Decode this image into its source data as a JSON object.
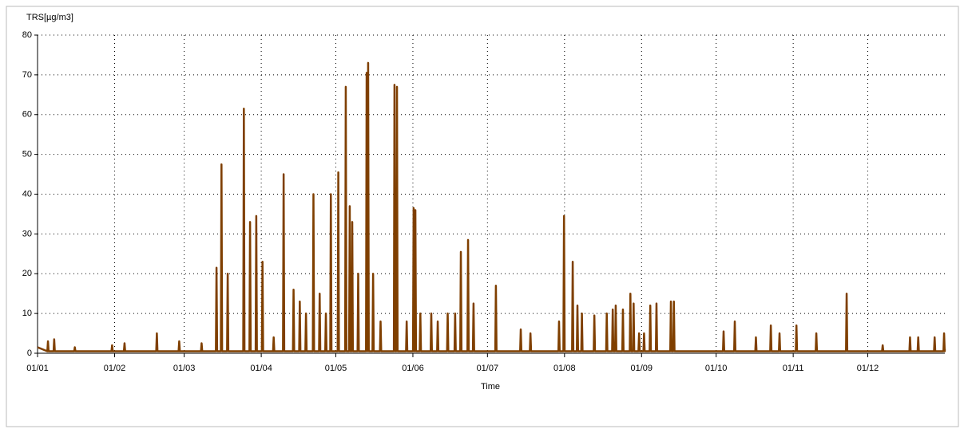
{
  "chart_data": {
    "type": "line",
    "y_label": "TRS[µg/m3]",
    "x_label": "Time",
    "color": "#7f3f00",
    "grid": true,
    "xlim": [
      0,
      365
    ],
    "ylim": [
      0,
      80
    ],
    "yticks": [
      0,
      10,
      20,
      30,
      40,
      50,
      60,
      70,
      80
    ],
    "xticks": [
      {
        "value": 0,
        "label": "01/01"
      },
      {
        "value": 31,
        "label": "01/02"
      },
      {
        "value": 59,
        "label": "01/03"
      },
      {
        "value": 90,
        "label": "01/04"
      },
      {
        "value": 120,
        "label": "01/05"
      },
      {
        "value": 151,
        "label": "01/06"
      },
      {
        "value": 181,
        "label": "01/07"
      },
      {
        "value": 212,
        "label": "01/08"
      },
      {
        "value": 243,
        "label": "01/09"
      },
      {
        "value": 273,
        "label": "01/10"
      },
      {
        "value": 304,
        "label": "01/11"
      },
      {
        "value": 334,
        "label": "01/12"
      }
    ],
    "x": [
      0,
      3.95,
      4.2,
      4.45,
      6.45,
      6.7,
      6.95,
      14.75,
      15,
      15.25,
      29.75,
      30,
      30.25,
      34.75,
      35,
      35.25,
      47.75,
      48,
      48.25,
      56.75,
      57,
      57.25,
      65.75,
      66,
      66.25,
      71.75,
      72,
      72.25,
      73.75,
      74,
      74.25,
      76.25,
      76.5,
      76.75,
      82.75,
      83,
      83.25,
      85.25,
      85.5,
      85.75,
      87.75,
      88,
      88.25,
      90.25,
      90.5,
      90.75,
      94.75,
      95,
      95.25,
      98.75,
      99,
      99.25,
      102.75,
      103,
      103.25,
      105.25,
      105.5,
      105.75,
      107.75,
      108,
      108.25,
      110.75,
      111,
      111.25,
      113.25,
      113.5,
      113.75,
      115.75,
      116,
      116.25,
      117.75,
      118,
      118.25,
      120.75,
      121,
      121.25,
      123.75,
      124,
      124.25,
      125.35,
      125.6,
      125.85,
      126.35,
      126.6,
      126.85,
      128.75,
      129,
      129.25,
      132.15,
      132.4,
      132.65,
      132.75,
      133,
      133.25,
      134.75,
      135,
      135.25,
      137.75,
      138,
      138.25,
      143.35,
      143.6,
      143.85,
      144.35,
      144.6,
      144.85,
      148.25,
      148.5,
      148.75,
      151.05,
      151.3,
      151.55,
      151.75,
      152,
      152.25,
      153.75,
      154,
      154.25,
      158.15,
      158.4,
      158.65,
      160.75,
      161,
      161.25,
      164.75,
      165,
      165.25,
      167.75,
      168,
      168.25,
      170.05,
      170.3,
      170.55,
      172.95,
      173.2,
      173.45,
      175.15,
      175.4,
      175.65,
      184.15,
      184.4,
      184.65,
      194.15,
      194.4,
      194.65,
      198.05,
      198.3,
      198.55,
      209.55,
      209.8,
      210.05,
      211.55,
      211.8,
      212.05,
      215.05,
      215.3,
      215.55,
      216.95,
      217.2,
      217.45,
      218.75,
      219,
      219.25,
      223.75,
      224,
      224.25,
      228.75,
      229,
      229.25,
      231.15,
      231.4,
      231.65,
      232.35,
      232.6,
      232.85,
      235.25,
      235.5,
      235.75,
      238.25,
      238.5,
      238.75,
      239.55,
      239.8,
      240.05,
      241.75,
      242,
      242.25,
      243.75,
      244,
      244.25,
      246.25,
      246.5,
      246.75,
      248.75,
      249,
      249.25,
      254.55,
      254.8,
      255.05,
      255.75,
      256,
      256.25,
      275.75,
      276,
      276.25,
      280.25,
      280.5,
      280.75,
      288.75,
      289,
      289.25,
      294.75,
      295,
      295.25,
      298.25,
      298.5,
      298.75,
      305.05,
      305.3,
      305.55,
      313.05,
      313.3,
      313.55,
      325.25,
      325.5,
      325.75,
      339.75,
      340,
      340.25,
      350.75,
      351,
      351.25,
      354.05,
      354.3,
      354.55,
      360.65,
      360.9,
      361.15,
      364.45,
      364.7,
      364.95,
      365
    ],
    "values": [
      1.5,
      0.5,
      3,
      0.5,
      0.5,
      3.5,
      0.5,
      0.5,
      1.5,
      0.5,
      0.5,
      2,
      0.5,
      0.5,
      2.5,
      0.5,
      0.5,
      5,
      0.5,
      0.5,
      3,
      0.5,
      0.5,
      2.5,
      0.5,
      0.5,
      21.5,
      0.5,
      0.5,
      47.5,
      0.5,
      0.5,
      20,
      0.5,
      0.5,
      61.5,
      0.5,
      0.5,
      33,
      0.5,
      0.5,
      34.5,
      0.5,
      0.5,
      23,
      0.5,
      0.5,
      4,
      0.5,
      0.5,
      45,
      0.5,
      0.5,
      16,
      0.5,
      0.5,
      13,
      0.5,
      0.5,
      10,
      0.5,
      0.5,
      40,
      0.5,
      0.5,
      15,
      0.5,
      0.5,
      10,
      0.5,
      0.5,
      40,
      0.5,
      0.5,
      45.5,
      0.5,
      0.5,
      67,
      0.5,
      0.5,
      37,
      0.5,
      0.5,
      33,
      0.5,
      0.5,
      20,
      0.5,
      0.5,
      70.5,
      0.5,
      0.5,
      73,
      0.5,
      0.5,
      20,
      0.5,
      0.5,
      8,
      0.5,
      0.5,
      67.5,
      0.5,
      0.5,
      67,
      0.5,
      0.5,
      8,
      0.5,
      0.5,
      36.5,
      0.5,
      0.5,
      36,
      0.5,
      0.5,
      10,
      0.5,
      0.5,
      10,
      0.5,
      0.5,
      8,
      0.5,
      0.5,
      10,
      0.5,
      0.5,
      10,
      0.5,
      0.5,
      25.5,
      0.5,
      0.5,
      28.5,
      0.5,
      0.5,
      12.5,
      0.5,
      0.5,
      17,
      0.5,
      0.5,
      6,
      0.5,
      0.5,
      5,
      0.5,
      0.5,
      8,
      0.5,
      0.5,
      34.5,
      0.5,
      0.5,
      23,
      0.5,
      0.5,
      12,
      0.5,
      0.5,
      10,
      0.5,
      0.5,
      9.5,
      0.5,
      0.5,
      10,
      0.5,
      0.5,
      11,
      0.5,
      0.5,
      12,
      0.5,
      0.5,
      11,
      0.5,
      0.5,
      15,
      0.5,
      0.5,
      12.5,
      0.5,
      0.5,
      5,
      0.5,
      0.5,
      5,
      0.5,
      0.5,
      12,
      0.5,
      0.5,
      12.5,
      0.5,
      0.5,
      13,
      0.5,
      0.5,
      13,
      0.5,
      0.5,
      5.5,
      0.5,
      0.5,
      8,
      0.5,
      0.5,
      4,
      0.5,
      0.5,
      7,
      0.5,
      0.5,
      5,
      0.5,
      0.5,
      7,
      0.5,
      0.5,
      5,
      0.5,
      0.5,
      15,
      0.5,
      0.5,
      2,
      0.5,
      0.5,
      4,
      0.5,
      0.5,
      4,
      0.5,
      0.5,
      4,
      0.5,
      0.5,
      5,
      0.5,
      1
    ]
  }
}
